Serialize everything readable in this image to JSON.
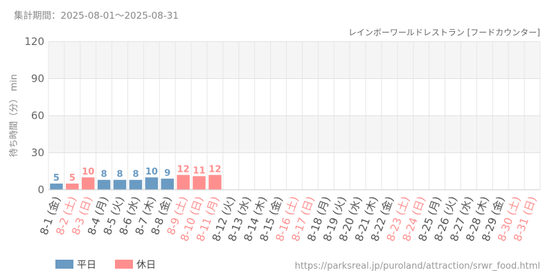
{
  "header": {
    "period": "集計期間：2025-08-01～2025-08-31",
    "restaurant": "レインボーワールドレストラン [フードカウンター]",
    "url": "https://parksreal.jp/puroland/attraction/srwr_food.html"
  },
  "colors": {
    "weekday": "#6a9bc3",
    "holiday": "#ff8f8f",
    "weekday_text": "#555555",
    "holiday_text": "#ff8f8f"
  },
  "chart_data": {
    "type": "bar",
    "ylabel": "待ち時間（分） min",
    "ylim": [
      0,
      120
    ],
    "yticks": [
      "0",
      "30",
      "60",
      "90",
      "120"
    ],
    "categories": [
      "8-1 (金)",
      "8-2 (土)",
      "8-3 (日)",
      "8-4 (月)",
      "8-5 (火)",
      "8-6 (水)",
      "8-7 (木)",
      "8-8 (金)",
      "8-9 (土)",
      "8-10 (日)",
      "8-11 (月)",
      "8-12 (火)",
      "8-13 (水)",
      "8-14 (木)",
      "8-15 (金)",
      "8-16 (土)",
      "8-17 (日)",
      "8-18 (月)",
      "8-19 (火)",
      "8-20 (水)",
      "8-21 (木)",
      "8-22 (金)",
      "8-23 (土)",
      "8-24 (日)",
      "8-25 (月)",
      "8-26 (火)",
      "8-27 (水)",
      "8-28 (木)",
      "8-29 (金)",
      "8-30 (土)",
      "8-31 (日)"
    ],
    "values": [
      5,
      5,
      10,
      8,
      8,
      8,
      10,
      9,
      12,
      11,
      12,
      null,
      null,
      null,
      null,
      null,
      null,
      null,
      null,
      null,
      null,
      null,
      null,
      null,
      null,
      null,
      null,
      null,
      null,
      null,
      null
    ],
    "holiday": [
      false,
      true,
      true,
      false,
      false,
      false,
      false,
      false,
      true,
      true,
      true,
      false,
      false,
      false,
      false,
      true,
      true,
      false,
      false,
      false,
      false,
      false,
      true,
      true,
      false,
      false,
      false,
      false,
      false,
      true,
      true
    ],
    "legend": [
      {
        "label": "平日",
        "color": "#6a9bc3"
      },
      {
        "label": "休日",
        "color": "#ff8f8f"
      }
    ]
  }
}
